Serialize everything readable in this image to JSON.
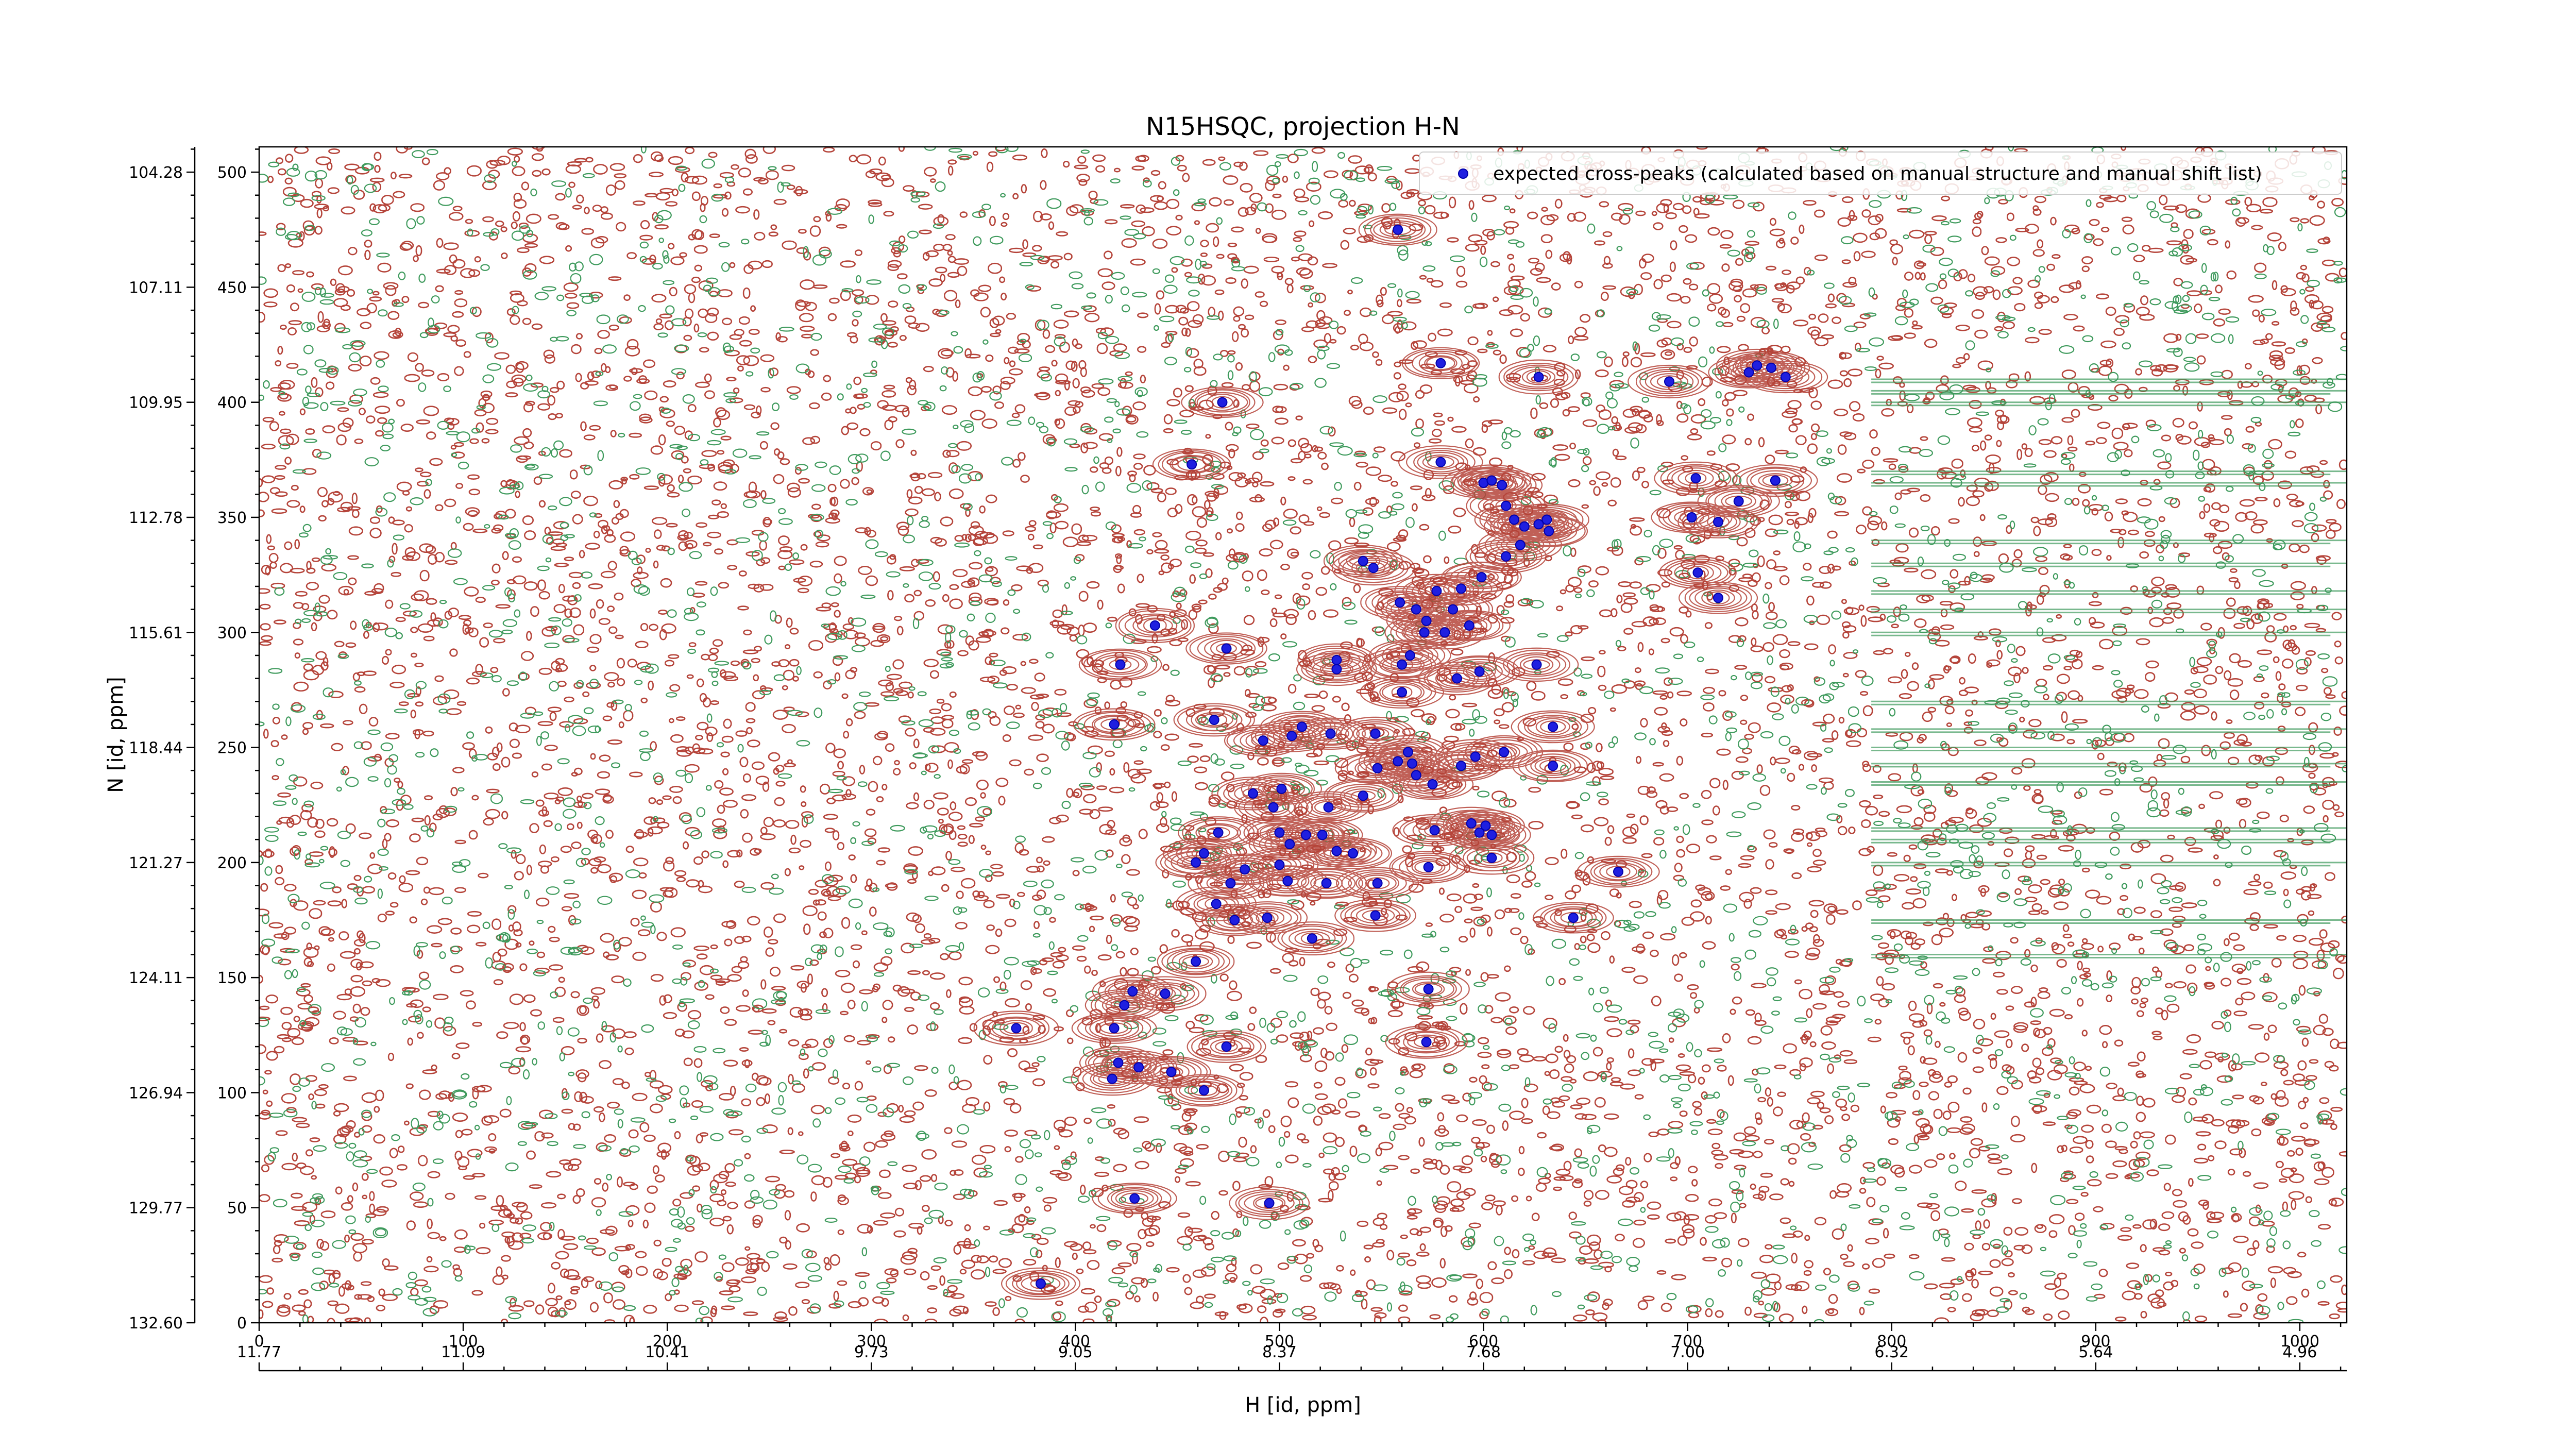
{
  "chart_data": {
    "type": "scatter",
    "title": "N15HSQC, projection H-N",
    "xlabel": "H [id, ppm]",
    "ylabel": "N [id, ppm]",
    "xlim": [
      0,
      1023
    ],
    "ylim": [
      0,
      511
    ],
    "x_ticks": [
      0,
      100,
      200,
      300,
      400,
      500,
      600,
      700,
      800,
      900,
      1000
    ],
    "y_ticks": [
      0,
      50,
      100,
      150,
      200,
      250,
      300,
      350,
      400,
      450,
      500
    ],
    "ppm_x_ticks": [
      {
        "pos": 0,
        "label": "11.77"
      },
      {
        "pos": 100,
        "label": "11.09"
      },
      {
        "pos": 200,
        "label": "10.41"
      },
      {
        "pos": 300,
        "label": "9.73"
      },
      {
        "pos": 400,
        "label": "9.05"
      },
      {
        "pos": 500,
        "label": "8.37"
      },
      {
        "pos": 600,
        "label": "7.68"
      },
      {
        "pos": 700,
        "label": "7.00"
      },
      {
        "pos": 800,
        "label": "6.32"
      },
      {
        "pos": 900,
        "label": "5.64"
      },
      {
        "pos": 1000,
        "label": "4.96"
      }
    ],
    "ppm_y_ticks": [
      {
        "pos": 0,
        "label": "132.60"
      },
      {
        "pos": 50,
        "label": "129.77"
      },
      {
        "pos": 100,
        "label": "126.94"
      },
      {
        "pos": 150,
        "label": "124.11"
      },
      {
        "pos": 200,
        "label": "121.27"
      },
      {
        "pos": 250,
        "label": "118.44"
      },
      {
        "pos": 300,
        "label": "115.61"
      },
      {
        "pos": 350,
        "label": "112.78"
      },
      {
        "pos": 400,
        "label": "109.95"
      },
      {
        "pos": 450,
        "label": "107.11"
      },
      {
        "pos": 500,
        "label": "104.28"
      }
    ],
    "legend": {
      "label": "expected cross-peaks (calculated based on manual structure and manual shift list)",
      "placement": "top-right"
    },
    "contour_colors": {
      "positive": "#b5443a",
      "negative": "#3e9a5c"
    },
    "marker_color": "#1f1fe0",
    "series": [
      {
        "name": "expected cross-peaks (calculated based on manual structure and manual shift list)",
        "points": [
          [
            383,
            17
          ],
          [
            495,
            52
          ],
          [
            429,
            54
          ],
          [
            371,
            128
          ],
          [
            418,
            106
          ],
          [
            421,
            113
          ],
          [
            431,
            111
          ],
          [
            447,
            109
          ],
          [
            463,
            101
          ],
          [
            474,
            120
          ],
          [
            419,
            128
          ],
          [
            424,
            138
          ],
          [
            428,
            144
          ],
          [
            444,
            143
          ],
          [
            459,
            157
          ],
          [
            572,
            122
          ],
          [
            573,
            145
          ],
          [
            644,
            176
          ],
          [
            666,
            196
          ],
          [
            469,
            182
          ],
          [
            478,
            175
          ],
          [
            494,
            176
          ],
          [
            516,
            167
          ],
          [
            547,
            177
          ],
          [
            459,
            200
          ],
          [
            463,
            204
          ],
          [
            476,
            191
          ],
          [
            483,
            197
          ],
          [
            500,
            199
          ],
          [
            504,
            192
          ],
          [
            523,
            191
          ],
          [
            548,
            191
          ],
          [
            573,
            198
          ],
          [
            604,
            202
          ],
          [
            470,
            213
          ],
          [
            500,
            213
          ],
          [
            505,
            208
          ],
          [
            513,
            212
          ],
          [
            521,
            212
          ],
          [
            528,
            205
          ],
          [
            536,
            204
          ],
          [
            576,
            214
          ],
          [
            594,
            217
          ],
          [
            598,
            213
          ],
          [
            601,
            216
          ],
          [
            604,
            212
          ],
          [
            487,
            230
          ],
          [
            497,
            224
          ],
          [
            524,
            224
          ],
          [
            541,
            229
          ],
          [
            575,
            234
          ],
          [
            548,
            241
          ],
          [
            558,
            244
          ],
          [
            565,
            243
          ],
          [
            567,
            238
          ],
          [
            589,
            242
          ],
          [
            634,
            242
          ],
          [
            501,
            232
          ],
          [
            468,
            262
          ],
          [
            492,
            253
          ],
          [
            506,
            255
          ],
          [
            511,
            259
          ],
          [
            525,
            256
          ],
          [
            547,
            256
          ],
          [
            563,
            248
          ],
          [
            596,
            246
          ],
          [
            610,
            248
          ],
          [
            634,
            259
          ],
          [
            419,
            260
          ],
          [
            422,
            286
          ],
          [
            474,
            293
          ],
          [
            528,
            284
          ],
          [
            528,
            288
          ],
          [
            560,
            286
          ],
          [
            560,
            274
          ],
          [
            587,
            280
          ],
          [
            598,
            283
          ],
          [
            626,
            286
          ],
          [
            439,
            303
          ],
          [
            564,
            290
          ],
          [
            571,
            300
          ],
          [
            572,
            305
          ],
          [
            581,
            300
          ],
          [
            585,
            310
          ],
          [
            593,
            303
          ],
          [
            559,
            313
          ],
          [
            567,
            310
          ],
          [
            577,
            318
          ],
          [
            589,
            319
          ],
          [
            599,
            324
          ],
          [
            611,
            333
          ],
          [
            618,
            338
          ],
          [
            620,
            346
          ],
          [
            627,
            347
          ],
          [
            546,
            328
          ],
          [
            541,
            331
          ],
          [
            600,
            365
          ],
          [
            604,
            366
          ],
          [
            609,
            364
          ],
          [
            611,
            355
          ],
          [
            615,
            349
          ],
          [
            631,
            349
          ],
          [
            632,
            344
          ],
          [
            579,
            374
          ],
          [
            457,
            373
          ],
          [
            472,
            400
          ],
          [
            691,
            409
          ],
          [
            702,
            350
          ],
          [
            705,
            326
          ],
          [
            715,
            315
          ],
          [
            725,
            357
          ],
          [
            704,
            367
          ],
          [
            715,
            348
          ],
          [
            743,
            366
          ],
          [
            579,
            417
          ],
          [
            627,
            411
          ],
          [
            730,
            413
          ],
          [
            734,
            416
          ],
          [
            741,
            415
          ],
          [
            748,
            411
          ],
          [
            558,
            475
          ]
        ]
      }
    ]
  }
}
